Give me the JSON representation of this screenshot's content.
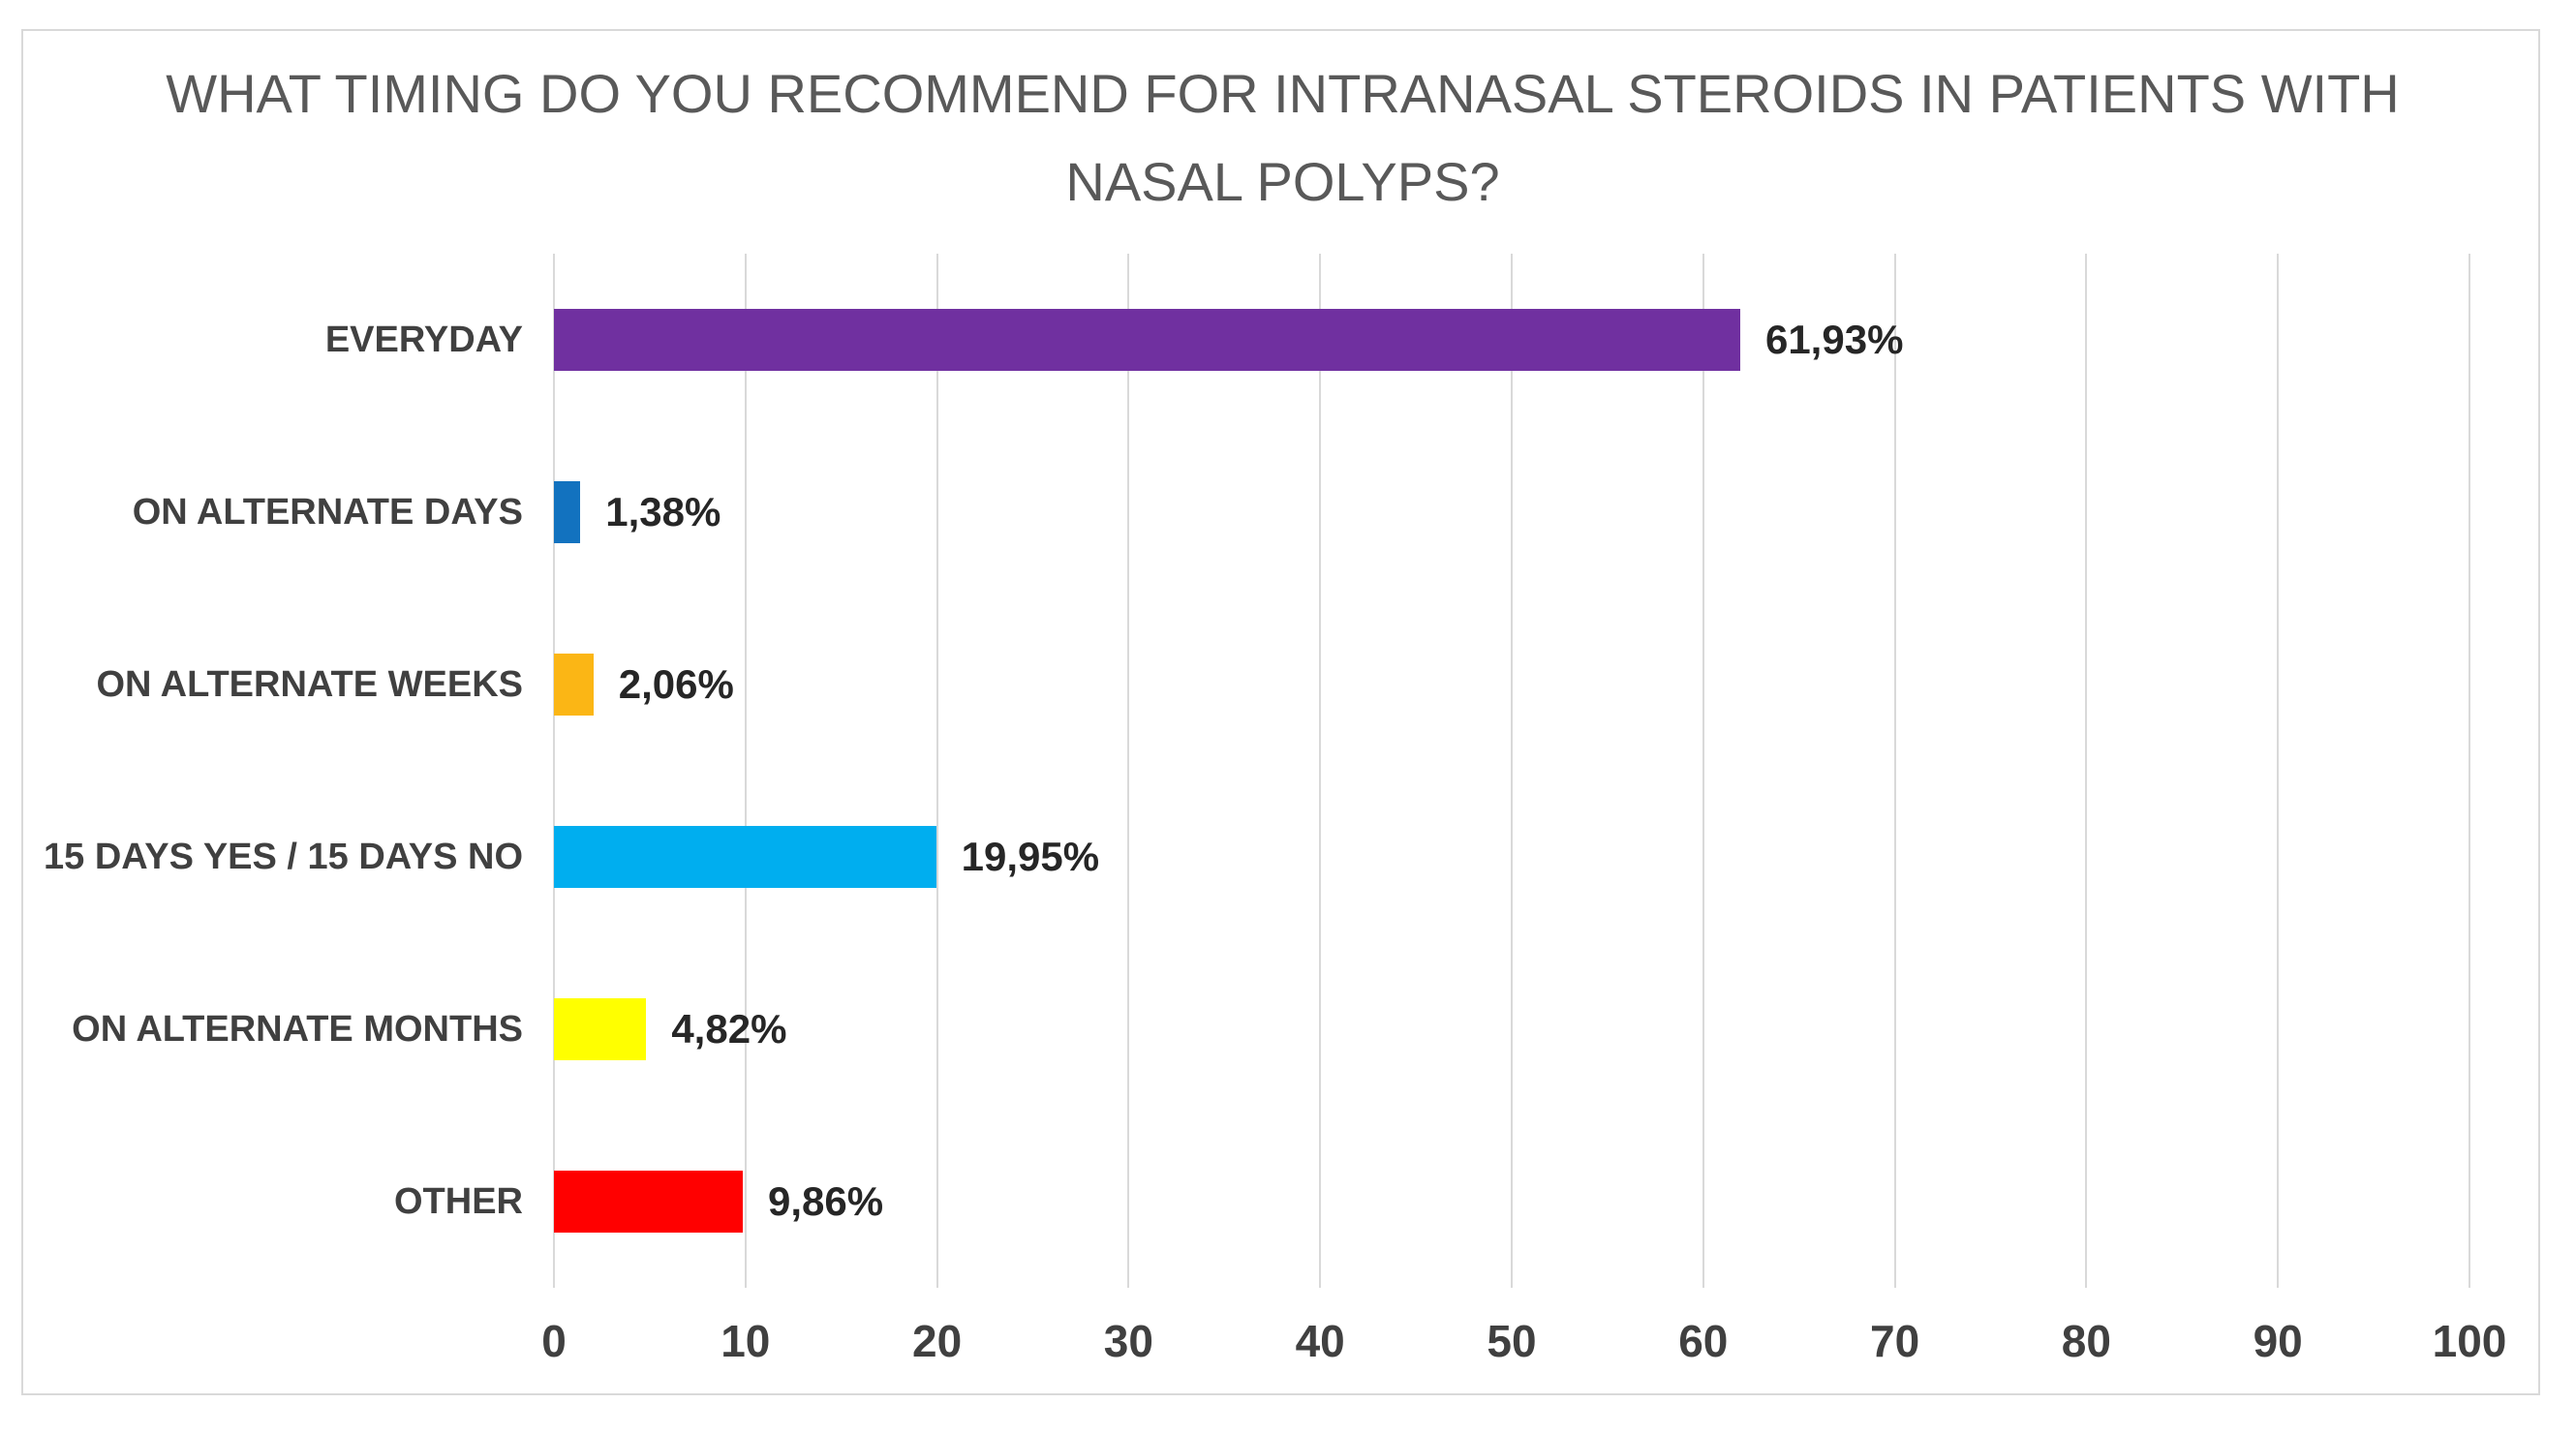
{
  "chart_data": {
    "type": "bar",
    "orientation": "horizontal",
    "title": "WHAT TIMING DO YOU RECOMMEND FOR INTRANASAL STEROIDS IN PATIENTS WITH NASAL POLYPS?",
    "title_lines": [
      "WHAT TIMING DO YOU RECOMMEND FOR INTRANASAL STEROIDS IN PATIENTS WITH",
      "NASAL POLYPS?"
    ],
    "categories": [
      "EVERYDAY",
      "ON ALTERNATE DAYS",
      "ON ALTERNATE WEEKS",
      "15 DAYS YES / 15 DAYS NO",
      "ON ALTERNATE MONTHS",
      "OTHER"
    ],
    "values": [
      61.93,
      1.38,
      2.06,
      19.95,
      4.82,
      9.86
    ],
    "value_labels": [
      "61,93%",
      "1,38%",
      "2,06%",
      "19,95%",
      "4,82%",
      "9,86%"
    ],
    "bar_colors": [
      "#7030A0",
      "#1272BF",
      "#FBB615",
      "#00AEEF",
      "#FFFF00",
      "#FF0000"
    ],
    "xlabel": "",
    "ylabel": "",
    "xlim": [
      0,
      100
    ],
    "x_ticks": [
      "0",
      "10",
      "20",
      "30",
      "40",
      "50",
      "60",
      "70",
      "80",
      "90",
      "100"
    ],
    "grid": "vertical",
    "legend_position": "none"
  },
  "style": {
    "title_color": "#595959",
    "category_label_color": "#404040",
    "value_label_color": "#262626",
    "tick_label_color": "#404040",
    "gridline_color": "#D9D9D9",
    "frame_border_color": "#D9D9D9",
    "background_color": "#FFFFFF"
  }
}
